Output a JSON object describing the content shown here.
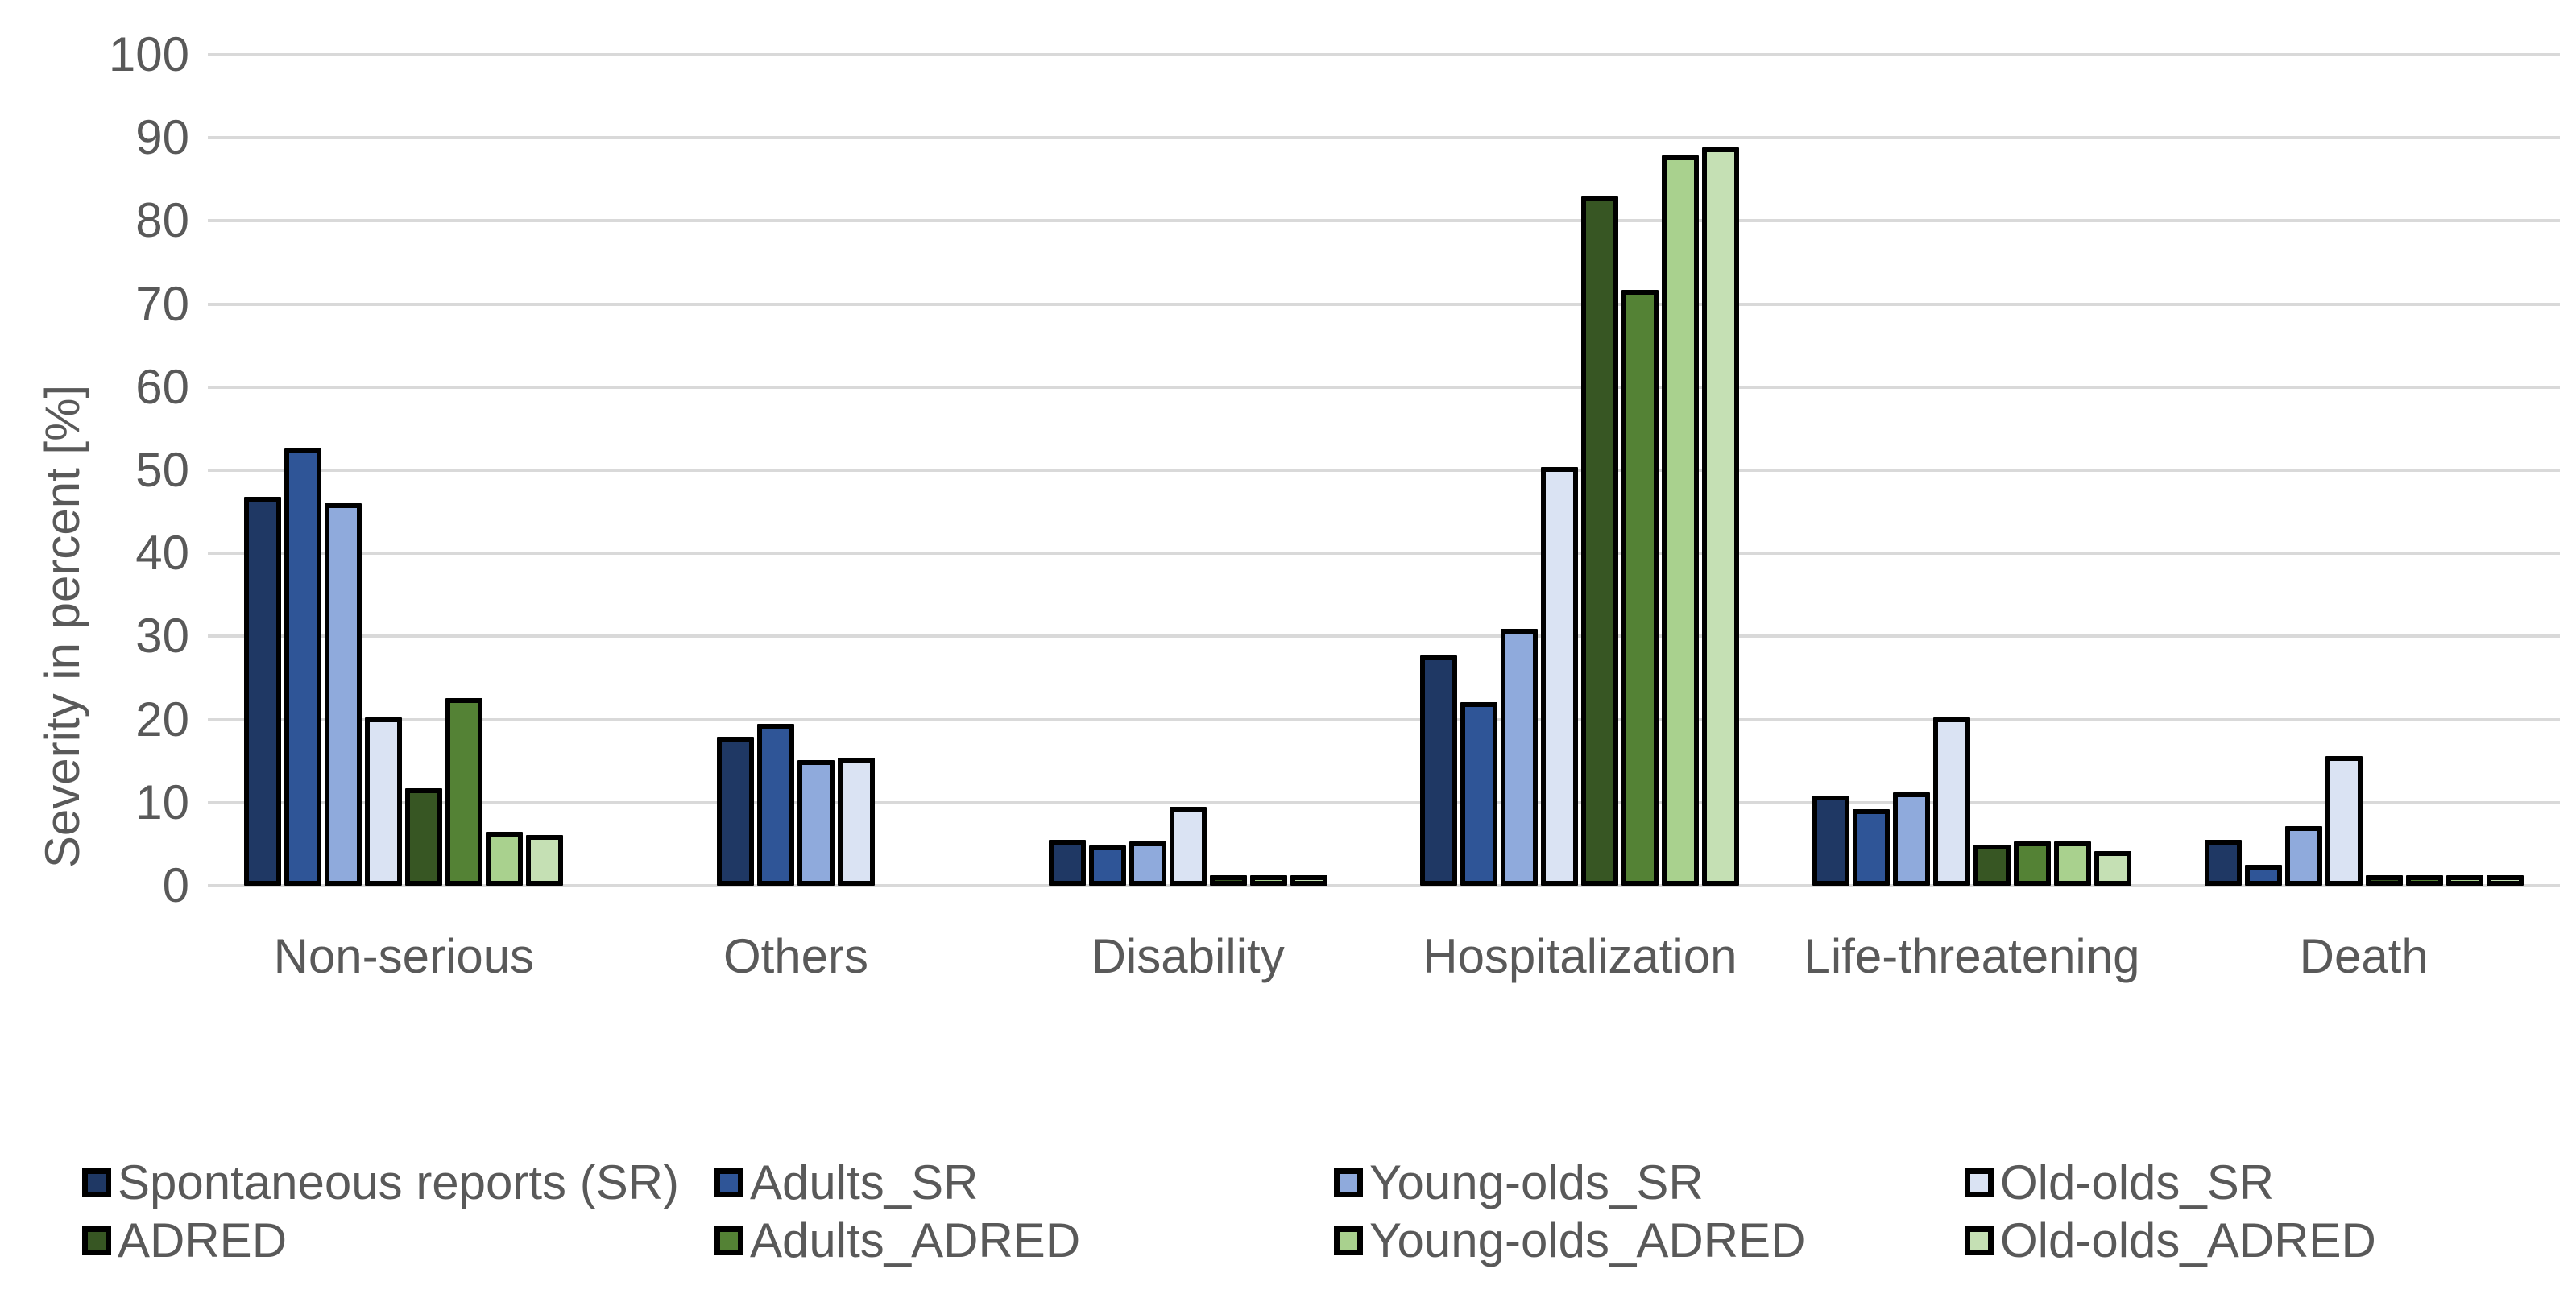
{
  "chart_data": {
    "type": "bar",
    "title": "",
    "xlabel": "",
    "ylabel": "Severity in percent [%]",
    "ylim": [
      0,
      100
    ],
    "ytick_step": 10,
    "grid": true,
    "legend_position": "bottom",
    "axis_text_color": "#595959",
    "gridline_color": "#D9D9D9",
    "bar_border_color": "#000000",
    "background_color": "#FFFFFF",
    "categories": [
      "Non-serious",
      "Others",
      "Disability",
      "Hospitalization",
      "Life-threatening",
      "Death"
    ],
    "series": [
      {
        "name": "Spontaneous reports (SR)",
        "color": "#1F3864",
        "values": [
          46.8,
          17.9,
          5.5,
          27.7,
          10.9,
          5.5
        ]
      },
      {
        "name": "Adults_SR",
        "color": "#2F5597",
        "values": [
          52.6,
          19.5,
          4.8,
          22.1,
          9.2,
          2.5
        ]
      },
      {
        "name": "Young-olds_SR",
        "color": "#8FAADC",
        "values": [
          46.0,
          15.1,
          5.3,
          30.9,
          11.2,
          7.2
        ]
      },
      {
        "name": "Old-olds_SR",
        "color": "#DAE3F3",
        "values": [
          20.3,
          15.4,
          9.5,
          50.4,
          20.3,
          15.6
        ]
      },
      {
        "name": "ADRED",
        "color": "#375623",
        "values": [
          11.7,
          0,
          0.5,
          82.9,
          4.9,
          0.6
        ]
      },
      {
        "name": "Adults_ADRED",
        "color": "#548235",
        "values": [
          22.6,
          0,
          0,
          71.7,
          5.3,
          0.6
        ]
      },
      {
        "name": "Young-olds_ADRED",
        "color": "#A9D18E",
        "values": [
          6.5,
          0,
          0.5,
          87.9,
          5.3,
          0.4
        ]
      },
      {
        "name": "Old-olds_ADRED",
        "color": "#C5E0B4",
        "values": [
          6.1,
          0,
          0.5,
          88.9,
          4.2,
          0.7
        ]
      }
    ],
    "legend_columns_x": [
      102,
      887,
      1656,
      2439
    ],
    "legend_rows": [
      [
        "Spontaneous reports (SR)",
        "Adults_SR",
        "Young-olds_SR",
        "Old-olds_SR"
      ],
      [
        "ADRED",
        "Adults_ADRED",
        "Young-olds_ADRED",
        "Old-olds_ADRED"
      ]
    ]
  }
}
